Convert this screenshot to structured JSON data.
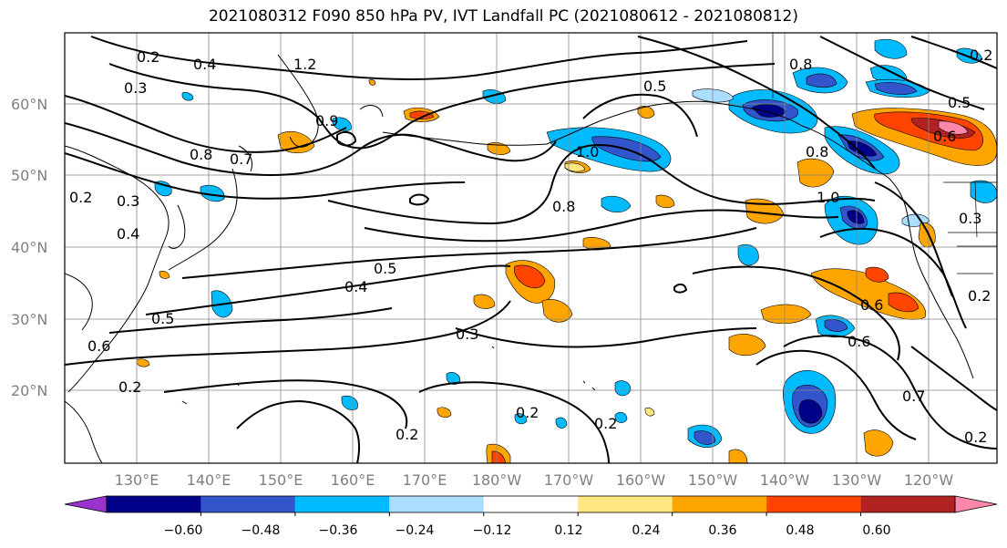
{
  "title": "2021080312 F090 850 hPa PV, IVT Landfall PC (2021080612 - 2021080812)",
  "lat_ticks": [
    "60°N",
    "50°N",
    "40°N",
    "30°N",
    "20°N"
  ],
  "lon_ticks": [
    "130°E",
    "140°E",
    "150°E",
    "160°E",
    "170°E",
    "180°W",
    "170°W",
    "160°W",
    "150°W",
    "140°W",
    "130°W",
    "120°W"
  ],
  "colorbar": {
    "colors": [
      "#9933cc",
      "#000088",
      "#3355cc",
      "#00bbff",
      "#aaddff",
      "#ffffff",
      "#ffe680",
      "#ffa500",
      "#ff4400",
      "#b22222",
      "#ff88aa"
    ],
    "tick_labels": [
      "−0.60",
      "−0.48",
      "−0.36",
      "−0.24",
      "−0.12",
      "0.12",
      "0.24",
      "0.36",
      "0.48",
      "0.60"
    ]
  },
  "contour_labels": [
    "0.2",
    "0.4",
    "1.2",
    "0.3",
    "0.9",
    "0.8",
    "0.7",
    "0.5",
    "1.0",
    "0.8",
    "0.2",
    "0.3",
    "0.4",
    "0.5",
    "0.4",
    "0.5",
    "0.6",
    "0.2",
    "0.3",
    "0.2",
    "0.2",
    "0.2",
    "0.8",
    "1.0",
    "0.6",
    "0.6",
    "0.7",
    "0.2",
    "0.6",
    "0.2",
    "0.5",
    "0.8",
    "0.3",
    "0.2"
  ]
}
